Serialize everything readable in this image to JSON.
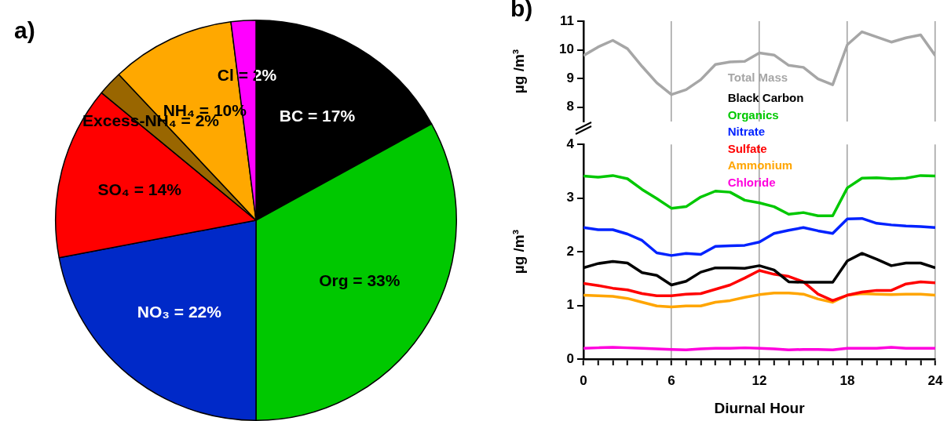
{
  "chart_data": [
    {
      "type": "pie",
      "annotations": [
        "a)"
      ],
      "categories": [
        "BC = 17%",
        "Org = 33%",
        "NO₃ = 22%",
        "SO₄ = 14%",
        "Excess-NH₄ = 2%",
        "NH₄ = 10%",
        "Cl = 2%"
      ],
      "values": [
        17,
        33,
        22,
        14,
        2,
        10,
        2
      ],
      "colors": [
        "#000000",
        "#00c800",
        "#0029c8",
        "#ff0000",
        "#996600",
        "#ffa800",
        "#ff00ff"
      ]
    },
    {
      "type": "line",
      "annotations": [
        "b)"
      ],
      "ylabel": "µg /m³",
      "x": [
        0,
        1,
        2,
        3,
        4,
        5,
        6,
        7,
        8,
        9,
        10,
        11,
        12,
        13,
        14,
        15,
        16,
        17,
        18,
        19,
        20,
        21,
        22,
        23,
        24
      ],
      "xlim": [
        0,
        24
      ],
      "xticks": [
        0,
        6,
        12,
        18,
        24
      ],
      "ylim": [
        7.5,
        11
      ],
      "yticks": [
        8,
        9,
        10,
        11
      ],
      "grid": "x",
      "legend": "bottom",
      "tick_labels": "y",
      "series": [
        {
          "name": "Total Mass",
          "color": "#a6a6a6",
          "values": [
            9.8,
            10.1,
            10.33,
            10.04,
            9.42,
            8.85,
            8.44,
            8.61,
            8.96,
            9.49,
            9.58,
            9.6,
            9.89,
            9.82,
            9.46,
            9.39,
            8.99,
            8.78,
            10.18,
            10.63,
            10.45,
            10.27,
            10.42,
            10.52,
            9.8
          ]
        }
      ]
    },
    {
      "type": "line",
      "xlabel": "Diurnal Hour",
      "ylabel": "µg /m³",
      "x": [
        0,
        1,
        2,
        3,
        4,
        5,
        6,
        7,
        8,
        9,
        10,
        11,
        12,
        13,
        14,
        15,
        16,
        17,
        18,
        19,
        20,
        21,
        22,
        23,
        24
      ],
      "xlim": [
        0,
        24
      ],
      "xticks": [
        0,
        {
          "value": 1,
          "label": null
        },
        {
          "value": 2,
          "label": null
        },
        {
          "value": 3,
          "label": null
        },
        {
          "value": 4,
          "label": null
        },
        {
          "value": 5,
          "label": null
        },
        6,
        {
          "value": 7,
          "label": null
        },
        {
          "value": 8,
          "label": null
        },
        {
          "value": 9,
          "label": null
        },
        {
          "value": 10,
          "label": null
        },
        {
          "value": 11,
          "label": null
        },
        12,
        {
          "value": 13,
          "label": null
        },
        {
          "value": 14,
          "label": null
        },
        {
          "value": 15,
          "label": null
        },
        {
          "value": 16,
          "label": null
        },
        {
          "value": 17,
          "label": null
        },
        18,
        {
          "value": 19,
          "label": null
        },
        {
          "value": 20,
          "label": null
        },
        {
          "value": 21,
          "label": null
        },
        {
          "value": 22,
          "label": null
        },
        {
          "value": 23,
          "label": null
        },
        24
      ],
      "ylim": [
        0,
        4
      ],
      "yticks": [
        0,
        1,
        2,
        3,
        4
      ],
      "grid": "x",
      "legend": "top",
      "series": [
        {
          "name": "Black Carbon",
          "color": "#000000",
          "values": [
            1.7,
            1.78,
            1.82,
            1.79,
            1.61,
            1.56,
            1.38,
            1.45,
            1.62,
            1.7,
            1.7,
            1.69,
            1.74,
            1.66,
            1.44,
            1.43,
            1.43,
            1.43,
            1.83,
            1.97,
            1.86,
            1.74,
            1.79,
            1.79,
            1.7
          ]
        },
        {
          "name": "Organics",
          "color": "#00c800",
          "values": [
            3.41,
            3.39,
            3.42,
            3.36,
            3.16,
            2.99,
            2.81,
            2.84,
            3.02,
            3.13,
            3.11,
            2.96,
            2.91,
            2.84,
            2.7,
            2.73,
            2.67,
            2.67,
            3.19,
            3.37,
            3.38,
            3.36,
            3.37,
            3.42,
            3.41
          ]
        },
        {
          "name": "Nitrate",
          "color": "#0022ff",
          "values": [
            2.45,
            2.41,
            2.41,
            2.33,
            2.21,
            1.98,
            1.93,
            1.97,
            1.95,
            2.1,
            2.11,
            2.12,
            2.18,
            2.34,
            2.4,
            2.45,
            2.39,
            2.34,
            2.61,
            2.62,
            2.53,
            2.5,
            2.48,
            2.47,
            2.45
          ]
        },
        {
          "name": "Sulfate",
          "color": "#ff0000",
          "values": [
            1.41,
            1.37,
            1.32,
            1.29,
            1.22,
            1.18,
            1.18,
            1.21,
            1.22,
            1.3,
            1.38,
            1.51,
            1.65,
            1.58,
            1.54,
            1.44,
            1.21,
            1.09,
            1.19,
            1.25,
            1.28,
            1.28,
            1.4,
            1.44,
            1.42
          ]
        },
        {
          "name": "Ammonium",
          "color": "#ffa500",
          "values": [
            1.19,
            1.18,
            1.17,
            1.13,
            1.06,
            0.99,
            0.97,
            0.99,
            0.99,
            1.06,
            1.09,
            1.15,
            1.2,
            1.23,
            1.23,
            1.21,
            1.12,
            1.06,
            1.19,
            1.22,
            1.21,
            1.2,
            1.21,
            1.21,
            1.19
          ]
        },
        {
          "name": "Chloride",
          "color": "#ff00dd",
          "values": [
            0.2,
            0.21,
            0.22,
            0.21,
            0.2,
            0.19,
            0.18,
            0.17,
            0.19,
            0.2,
            0.2,
            0.21,
            0.2,
            0.19,
            0.17,
            0.18,
            0.18,
            0.17,
            0.2,
            0.2,
            0.2,
            0.22,
            0.2,
            0.2,
            0.2
          ]
        }
      ]
    }
  ]
}
